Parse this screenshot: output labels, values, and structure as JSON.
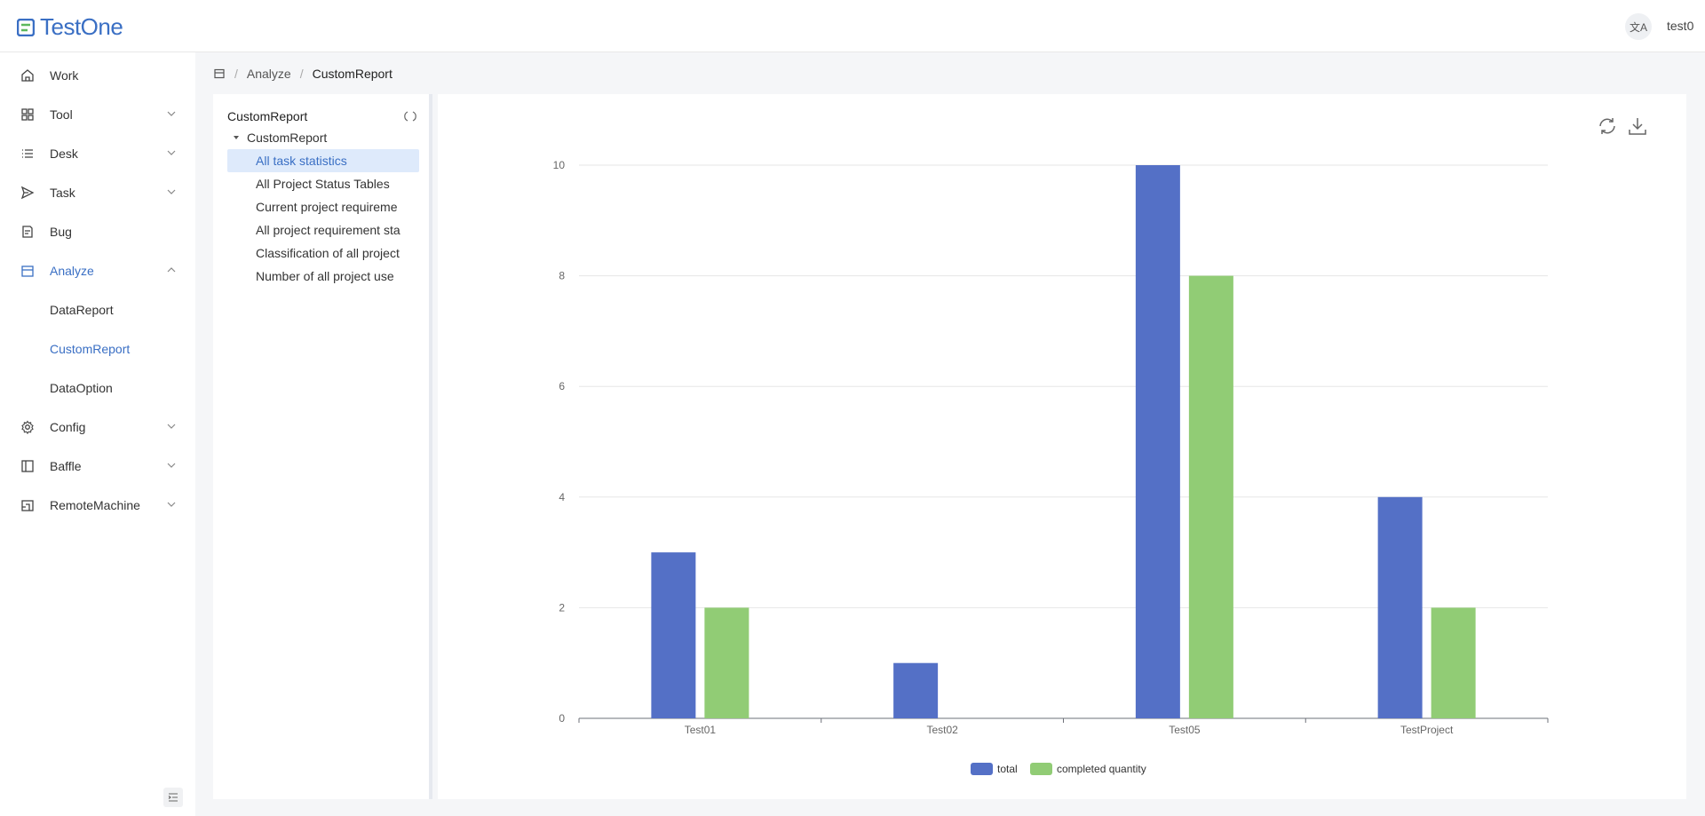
{
  "header": {
    "logo_text": "TestOne",
    "lang_icon": "translate-icon",
    "lang_label": "文A",
    "user": "test0"
  },
  "sidebar": {
    "items": [
      {
        "label": "Work",
        "icon": "home-icon"
      },
      {
        "label": "Tool",
        "icon": "grid-icon",
        "expandable": true
      },
      {
        "label": "Desk",
        "icon": "list-icon",
        "expandable": true
      },
      {
        "label": "Task",
        "icon": "send-icon",
        "expandable": true
      },
      {
        "label": "Bug",
        "icon": "document-icon"
      },
      {
        "label": "Analyze",
        "icon": "calendar-icon",
        "expandable": true,
        "expanded": true
      },
      {
        "label": "Config",
        "icon": "gear-icon",
        "expandable": true
      },
      {
        "label": "Baffle",
        "icon": "panel-icon",
        "expandable": true
      },
      {
        "label": "RemoteMachine",
        "icon": "machine-icon",
        "expandable": true
      }
    ],
    "analyze_sub": [
      "DataReport",
      "CustomReport",
      "DataOption"
    ],
    "active_sub": "CustomReport"
  },
  "breadcrumb": {
    "parent": "Analyze",
    "current": "CustomReport"
  },
  "tree": {
    "title": "CustomReport",
    "root": "CustomReport",
    "leaves": [
      "All task statistics",
      "All Project Status Tables",
      "Current project requireme",
      "All project requirement sta",
      "Classification of all project",
      "Number of all project use"
    ],
    "selected_index": 0
  },
  "toolbar": {
    "refresh_icon": "refresh-icon",
    "download_icon": "download-icon"
  },
  "colors": {
    "accent": "#3a6fc4",
    "series_total": "#5470c6",
    "series_completed": "#91cc75"
  },
  "chart_data": {
    "type": "bar",
    "categories": [
      "Test01",
      "Test02",
      "Test05",
      "TestProject"
    ],
    "series": [
      {
        "name": "total",
        "values": [
          3,
          1,
          10,
          4
        ]
      },
      {
        "name": "completed quantity",
        "values": [
          2,
          0,
          8,
          2
        ]
      }
    ],
    "yticks": [
      "0",
      "2",
      "4",
      "6",
      "8",
      "10"
    ],
    "ylim": [
      0,
      10
    ],
    "grid": true,
    "legend_position": "bottom"
  }
}
